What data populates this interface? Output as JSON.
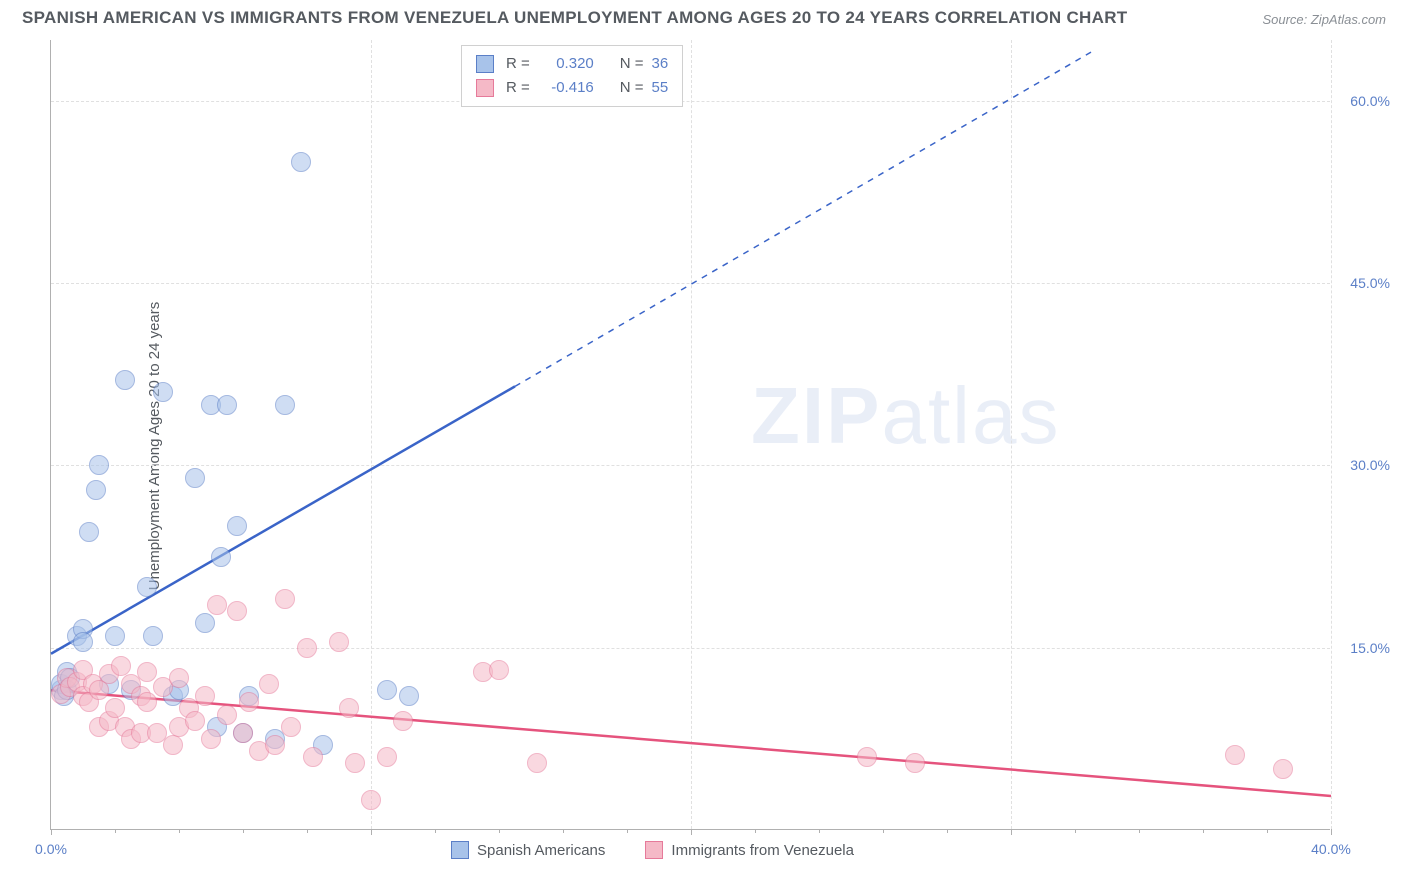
{
  "title": "SPANISH AMERICAN VS IMMIGRANTS FROM VENEZUELA UNEMPLOYMENT AMONG AGES 20 TO 24 YEARS CORRELATION CHART",
  "source": "Source: ZipAtlas.com",
  "ylabel": "Unemployment Among Ages 20 to 24 years",
  "watermark_zip": "ZIP",
  "watermark_atlas": "atlas",
  "chart": {
    "type": "scatter",
    "xlim": [
      0,
      40
    ],
    "ylim": [
      0,
      65
    ],
    "x_ticks": [
      0,
      10,
      20,
      30,
      40
    ],
    "x_tick_labels": [
      "0.0%",
      "",
      "",
      "",
      "40.0%"
    ],
    "y_ticks": [
      15,
      30,
      45,
      60
    ],
    "y_tick_labels": [
      "15.0%",
      "30.0%",
      "45.0%",
      "60.0%"
    ],
    "x_minor_ticks": [
      2,
      4,
      6,
      8,
      12,
      14,
      16,
      18,
      22,
      24,
      26,
      28,
      32,
      34,
      36,
      38
    ],
    "grid_color": "#e0e0e0",
    "axis_color": "#b0b0b0",
    "tick_label_color": "#5b7fc7",
    "marker_radius": 10,
    "marker_opacity": 0.55,
    "background_color": "#ffffff"
  },
  "series": [
    {
      "key": "spanish",
      "label": "Spanish Americans",
      "fill_color": "#a8c3ea",
      "stroke_color": "#5b7fc7",
      "line_color": "#3a64c8",
      "line_width": 2.5,
      "r_value": "0.320",
      "n_value": "36",
      "trend": {
        "x1": 0,
        "y1": 14.5,
        "x2": 14.5,
        "y2": 36.5,
        "dash_x2": 32.5,
        "dash_y2": 64
      },
      "points": [
        [
          0.3,
          11.5
        ],
        [
          0.3,
          12
        ],
        [
          0.4,
          11
        ],
        [
          0.5,
          13
        ],
        [
          0.5,
          11.5
        ],
        [
          0.6,
          12.5
        ],
        [
          0.8,
          16
        ],
        [
          1.0,
          16.5
        ],
        [
          1.0,
          15.5
        ],
        [
          1.2,
          24.5
        ],
        [
          1.4,
          28
        ],
        [
          1.5,
          30
        ],
        [
          1.8,
          12
        ],
        [
          2.0,
          16
        ],
        [
          2.3,
          37
        ],
        [
          2.5,
          11.5
        ],
        [
          3.0,
          20
        ],
        [
          3.2,
          16
        ],
        [
          3.5,
          36
        ],
        [
          3.8,
          11
        ],
        [
          4.0,
          11.5
        ],
        [
          4.5,
          29
        ],
        [
          5.0,
          35
        ],
        [
          5.3,
          22.5
        ],
        [
          5.5,
          35
        ],
        [
          5.8,
          25
        ],
        [
          6.0,
          8
        ],
        [
          6.2,
          11
        ],
        [
          7.0,
          7.5
        ],
        [
          7.3,
          35
        ],
        [
          7.8,
          55
        ],
        [
          8.5,
          7
        ],
        [
          10.5,
          11.5
        ],
        [
          11.2,
          11
        ],
        [
          5.2,
          8.5
        ],
        [
          4.8,
          17
        ]
      ]
    },
    {
      "key": "venezuela",
      "label": "Immigrants from Venezuela",
      "fill_color": "#f5b9c7",
      "stroke_color": "#e67a9a",
      "line_color": "#e5537d",
      "line_width": 2.5,
      "r_value": "-0.416",
      "n_value": "55",
      "trend": {
        "x1": 0,
        "y1": 11.5,
        "x2": 40,
        "y2": 2.8
      },
      "points": [
        [
          0.3,
          11.2
        ],
        [
          0.5,
          12.5
        ],
        [
          0.6,
          11.8
        ],
        [
          0.8,
          12.2
        ],
        [
          1.0,
          11
        ],
        [
          1.0,
          13.2
        ],
        [
          1.2,
          10.5
        ],
        [
          1.3,
          12
        ],
        [
          1.5,
          11.5
        ],
        [
          1.5,
          8.5
        ],
        [
          1.8,
          12.8
        ],
        [
          1.8,
          9
        ],
        [
          2.0,
          10
        ],
        [
          2.2,
          13.5
        ],
        [
          2.3,
          8.5
        ],
        [
          2.5,
          12
        ],
        [
          2.5,
          7.5
        ],
        [
          2.8,
          11
        ],
        [
          2.8,
          8
        ],
        [
          3.0,
          10.5
        ],
        [
          3.0,
          13
        ],
        [
          3.3,
          8
        ],
        [
          3.5,
          11.8
        ],
        [
          3.8,
          7
        ],
        [
          4.0,
          12.5
        ],
        [
          4.0,
          8.5
        ],
        [
          4.3,
          10
        ],
        [
          4.5,
          9
        ],
        [
          4.8,
          11
        ],
        [
          5.0,
          7.5
        ],
        [
          5.2,
          18.5
        ],
        [
          5.5,
          9.5
        ],
        [
          5.8,
          18
        ],
        [
          6.0,
          8
        ],
        [
          6.2,
          10.5
        ],
        [
          6.5,
          6.5
        ],
        [
          6.8,
          12
        ],
        [
          7.0,
          7
        ],
        [
          7.3,
          19
        ],
        [
          7.5,
          8.5
        ],
        [
          8.0,
          15
        ],
        [
          8.2,
          6
        ],
        [
          9.0,
          15.5
        ],
        [
          9.3,
          10
        ],
        [
          9.5,
          5.5
        ],
        [
          10.0,
          2.5
        ],
        [
          10.5,
          6
        ],
        [
          11.0,
          9
        ],
        [
          13.5,
          13
        ],
        [
          14.0,
          13.2
        ],
        [
          15.2,
          5.5
        ],
        [
          25.5,
          6
        ],
        [
          27.0,
          5.5
        ],
        [
          37.0,
          6.2
        ],
        [
          38.5,
          5
        ]
      ]
    }
  ],
  "legend_top": {
    "r_label": "R  =",
    "n_label": "N  ="
  }
}
